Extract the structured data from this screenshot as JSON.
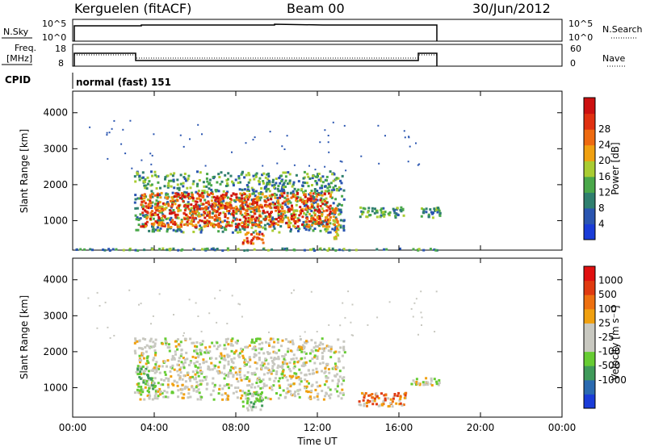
{
  "header": {
    "title_left": "Kerguelen (fitACF)",
    "title_center": "Beam 00",
    "title_right": "30/Jun/2012"
  },
  "strips": {
    "nsky_label": "N.Sky",
    "nsky_ticks": [
      "10^5",
      "10^0"
    ],
    "nsky_right_ticks": [
      "10^5",
      "10^0"
    ],
    "nsearch_label": "N.Search",
    "freq_label_1": "Freq.",
    "freq_label_2": "[MHz]",
    "freq_ticks": [
      "18",
      "8"
    ],
    "nave_ticks": [
      "60",
      "0"
    ],
    "nave_label": "Nave",
    "cpid_label": "CPID",
    "cpid_value": "normal (fast) 151"
  },
  "chart_data": [
    {
      "type": "heatmap",
      "name": "power-panel",
      "ylabel": "Slant Range [km]",
      "xlabel": "Time UT",
      "yticks": [
        "1000",
        "2000",
        "3000",
        "4000"
      ],
      "xticks": [
        "00:00",
        "04:00",
        "08:00",
        "12:00",
        "16:00",
        "20:00",
        "00:00"
      ],
      "ylim": [
        180,
        4600
      ],
      "xlim": [
        0,
        24
      ],
      "colorbar": {
        "label": "Power [dB]",
        "ticks": [
          "4",
          "8",
          "12",
          "16",
          "20",
          "24",
          "28"
        ],
        "colors": [
          "#1a3cd8",
          "#2a55b0",
          "#2f7f6e",
          "#4aa84a",
          "#a9cc32",
          "#f0a010",
          "#ee6a10",
          "#e03010",
          "#cc1010"
        ]
      },
      "regions": [
        {
          "t0": 3.0,
          "t1": 13.3,
          "r0": 700,
          "r1": 2400,
          "level": "low"
        },
        {
          "t0": 3.3,
          "t1": 12.6,
          "r0": 850,
          "r1": 1800,
          "level": "high"
        },
        {
          "t0": 8.3,
          "t1": 9.3,
          "r0": 380,
          "r1": 700,
          "level": "high"
        },
        {
          "t0": 12.7,
          "t1": 13.0,
          "r0": 500,
          "r1": 1400,
          "level": "mid"
        },
        {
          "t0": 14.0,
          "t1": 16.3,
          "r0": 1100,
          "r1": 1400,
          "level": "low"
        },
        {
          "t0": 17.0,
          "t1": 18.0,
          "r0": 1100,
          "r1": 1400,
          "level": "low"
        },
        {
          "t0": 0.0,
          "t1": 18.0,
          "r0": 200,
          "r1": 260,
          "level": "low"
        }
      ]
    },
    {
      "type": "heatmap",
      "name": "velocity-panel",
      "ylabel": "Slant Range [km]",
      "xlabel": "Time UT",
      "yticks": [
        "1000",
        "2000",
        "3000",
        "4000"
      ],
      "xticks": [
        "00:00",
        "04:00",
        "08:00",
        "12:00",
        "16:00",
        "20:00",
        "00:00"
      ],
      "ylim": [
        180,
        4600
      ],
      "xlim": [
        0,
        24
      ],
      "colorbar": {
        "label": "Velocity [m s⁻¹]",
        "ticks": [
          "1000",
          "500",
          "100",
          "25",
          "-25",
          "-100",
          "-500",
          "-1000"
        ],
        "colors": [
          "#1a3cd8",
          "#2a6ab0",
          "#3f9a5a",
          "#66cc33",
          "#c8c8c0",
          "#c8c8c0",
          "#f0a010",
          "#ee7010",
          "#e03a10",
          "#e01010"
        ]
      },
      "regions": [
        {
          "t0": 3.0,
          "t1": 13.3,
          "r0": 700,
          "r1": 2400,
          "level": "gray"
        },
        {
          "t0": 3.1,
          "t1": 4.0,
          "r0": 900,
          "r1": 1600,
          "level": "green"
        },
        {
          "t0": 8.3,
          "t1": 9.3,
          "r0": 400,
          "r1": 900,
          "level": "green"
        },
        {
          "t0": 14.0,
          "t1": 16.3,
          "r0": 500,
          "r1": 900,
          "level": "orange"
        },
        {
          "t0": 16.5,
          "t1": 18.0,
          "r0": 1100,
          "r1": 1300,
          "level": "gray"
        }
      ]
    }
  ]
}
